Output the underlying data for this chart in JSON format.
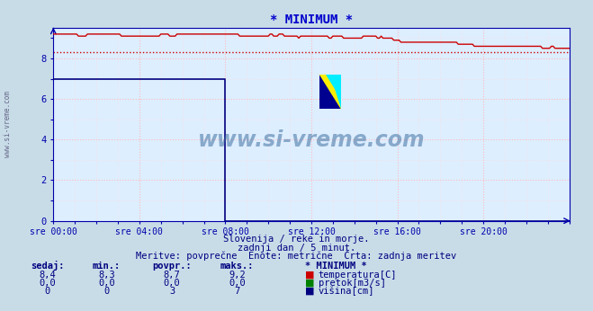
{
  "title": "* MINIMUM *",
  "title_color": "#0000cc",
  "bg_color": "#c8dce8",
  "plot_bg_color": "#ddeeff",
  "grid_color_major": "#ffbbbb",
  "grid_color_minor": "#ffdddd",
  "axis_color": "#0000aa",
  "text_color": "#000080",
  "xlim": [
    0,
    288
  ],
  "ylim": [
    0,
    9.5
  ],
  "yticks": [
    0,
    2,
    4,
    6,
    8
  ],
  "xtick_positions": [
    0,
    48,
    96,
    144,
    192,
    240
  ],
  "xtick_labels": [
    "sre 00:00",
    "sre 04:00",
    "sre 08:00",
    "sre 12:00",
    "sre 16:00",
    "sre 20:00"
  ],
  "temp_color": "#cc0000",
  "temp_min_value": 8.3,
  "height_color": "#000080",
  "pretok_color": "#008000",
  "watermark": "www.si-vreme.com",
  "watermark_color": "#336699",
  "subtitle1": "Slovenija / reke in morje.",
  "subtitle2": "zadnji dan / 5 minut.",
  "subtitle3": "Meritve: povprečne  Enote: metrične  Črta: zadnja meritev",
  "legend_title": "* MINIMUM *",
  "legend_cols": [
    "sedaj:",
    "min.:",
    "povpr.:",
    "maks.:"
  ],
  "temp_row": [
    "8,4",
    "8,3",
    "8,7",
    "9,2"
  ],
  "pretok_row": [
    "0,0",
    "0,0",
    "0,0",
    "0,0"
  ],
  "visina_row": [
    "0",
    "0",
    "3",
    "7"
  ],
  "sidebar_text": "www.si-vreme.com"
}
